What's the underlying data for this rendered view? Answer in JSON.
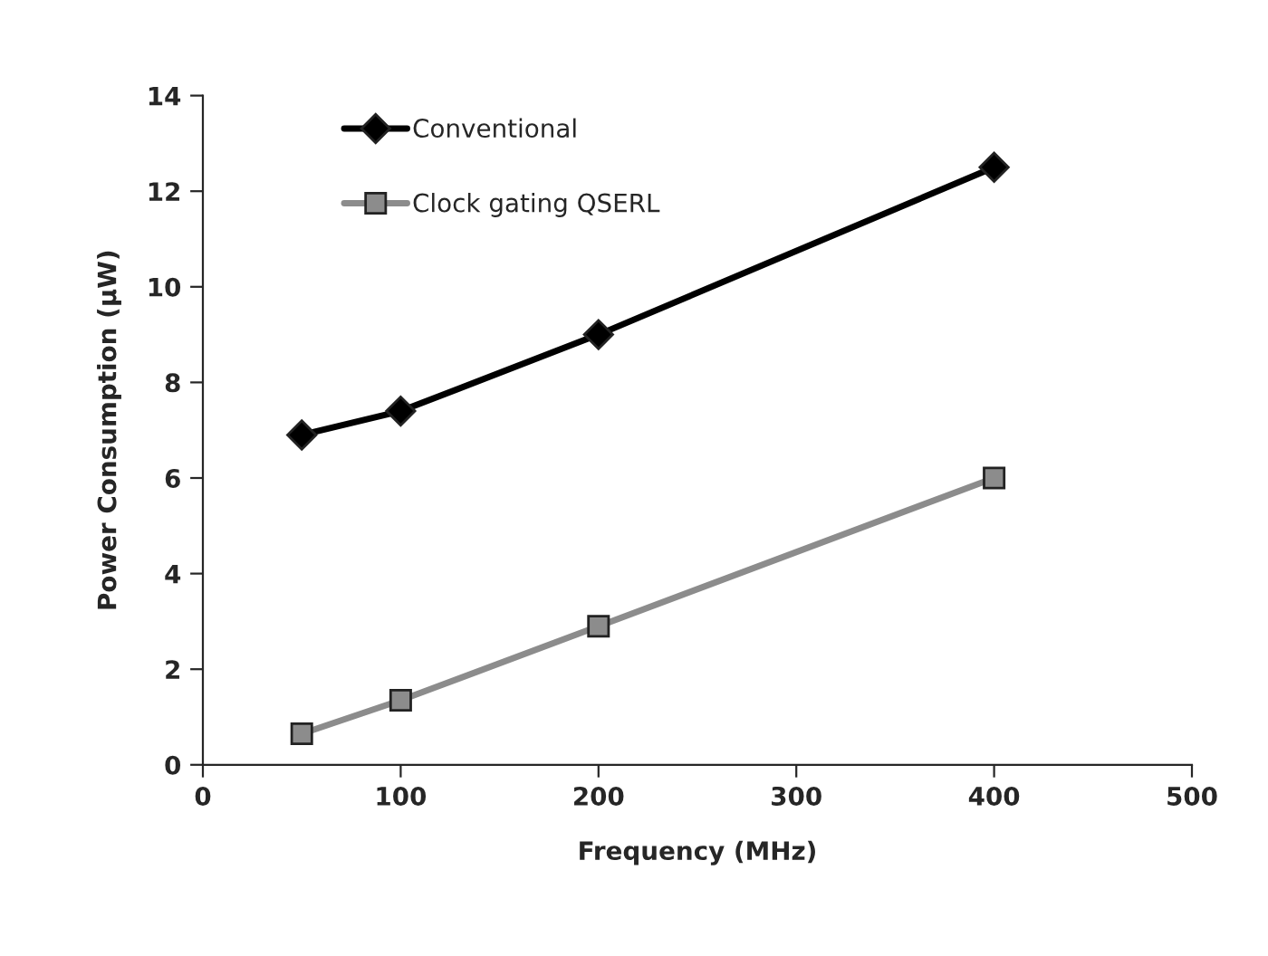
{
  "chart_data": {
    "type": "line",
    "xlabel": "Frequency (MHz)",
    "ylabel": "Power Consumption (µW)",
    "x": [
      50,
      100,
      200,
      400
    ],
    "series": [
      {
        "name": "Conventional",
        "color": "#000000",
        "marker": "diamond",
        "values": [
          6.9,
          7.4,
          9.0,
          12.5
        ]
      },
      {
        "name": "Clock gating QSERL",
        "color": "#8c8c8c",
        "marker": "square",
        "values": [
          0.65,
          1.35,
          2.9,
          6.0
        ]
      }
    ],
    "xlim": [
      0,
      500
    ],
    "xticks": [
      0,
      100,
      200,
      300,
      400,
      500
    ],
    "ylim": [
      0,
      14
    ],
    "yticks": [
      0,
      2,
      4,
      6,
      8,
      10,
      12,
      14
    ],
    "grid": false,
    "legend": "top left",
    "line_style": "solid"
  }
}
